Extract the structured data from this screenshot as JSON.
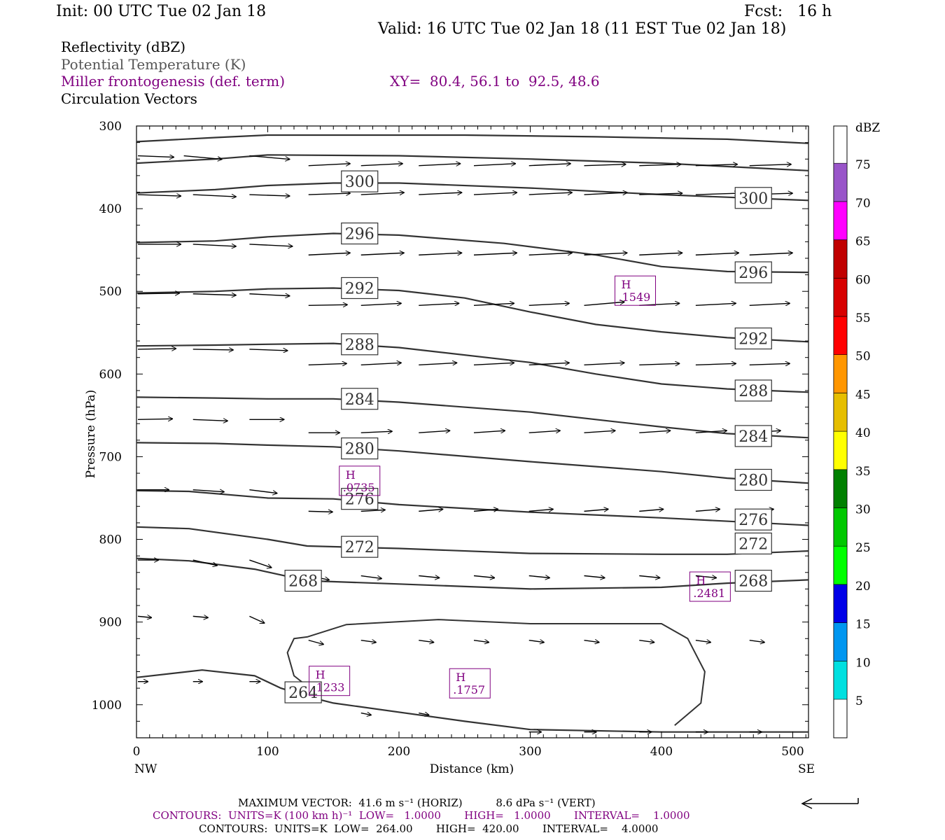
{
  "header": {
    "init": "Init: 00 UTC Tue 02 Jan 18",
    "fcst": "Fcst:   16 h",
    "valid": "Valid: 16 UTC Tue 02 Jan 18 (11 EST Tue 02 Jan 18)",
    "field1": "Reflectivity (dBZ)",
    "field2": "Potential Temperature (K)",
    "field3": "Miller frontogenesis (def. term)",
    "xy": "XY=  80.4, 56.1 to  92.5, 48.6",
    "field4": "Circulation Vectors"
  },
  "footer": {
    "max_vector": "MAXIMUM VECTOR:  41.6 m s⁻¹ (HORIZ)          8.6 dPa s⁻¹ (VERT)",
    "contours1": "CONTOURS:  UNITS=K (100 km h)⁻¹  LOW=   1.0000       HIGH=   1.0000       INTERVAL=    1.0000",
    "contours2": "CONTOURS:  UNITS=K  LOW=  264.00       HIGH=  420.00       INTERVAL=    4.0000"
  },
  "chart_data": {
    "type": "cross-section",
    "xlabel": "Distance (km)",
    "ylabel": "Pressure (hPa)",
    "xlim": [
      0,
      512
    ],
    "ylim": [
      300,
      1040
    ],
    "x_ticks": [
      0,
      100,
      200,
      300,
      400,
      500
    ],
    "y_ticks": [
      300,
      400,
      500,
      600,
      700,
      800,
      900,
      1000
    ],
    "x_end_labels": [
      "NW",
      "SE"
    ],
    "colorbar": {
      "title": "dBZ",
      "tick_labels": [
        "5",
        "10",
        "15",
        "20",
        "25",
        "30",
        "35",
        "40",
        "45",
        "50",
        "55",
        "60",
        "65",
        "70",
        "75"
      ],
      "colors": [
        "#00E0E0",
        "#0096F0",
        "#0000E8",
        "#00FF00",
        "#00C800",
        "#008000",
        "#FFFF00",
        "#E6BE00",
        "#FF9600",
        "#FF0000",
        "#D70000",
        "#C00000",
        "#FF00FF",
        "#9955C9",
        "#FFFFFF"
      ]
    },
    "theta_contours": [
      {
        "label": "",
        "points": [
          [
            0,
            319
          ],
          [
            60,
            314
          ],
          [
            100,
            311
          ],
          [
            250,
            311
          ],
          [
            350,
            313
          ],
          [
            450,
            316
          ],
          [
            512,
            321
          ]
        ]
      },
      {
        "label": "",
        "points": [
          [
            0,
            345
          ],
          [
            60,
            340
          ],
          [
            100,
            335
          ],
          [
            200,
            336
          ],
          [
            300,
            340
          ],
          [
            400,
            345
          ],
          [
            512,
            354
          ]
        ]
      },
      {
        "label": "300",
        "label_at": [
          [
            170,
            367
          ],
          [
            470,
            387
          ]
        ],
        "points": [
          [
            0,
            381
          ],
          [
            60,
            377
          ],
          [
            100,
            372
          ],
          [
            150,
            369
          ],
          [
            200,
            369
          ],
          [
            300,
            375
          ],
          [
            400,
            383
          ],
          [
            512,
            390
          ]
        ]
      },
      {
        "label": "296",
        "label_at": [
          [
            170,
            430
          ],
          [
            470,
            477
          ]
        ],
        "points": [
          [
            0,
            441
          ],
          [
            60,
            439
          ],
          [
            100,
            434
          ],
          [
            150,
            430
          ],
          [
            200,
            432
          ],
          [
            280,
            442
          ],
          [
            350,
            456
          ],
          [
            400,
            470
          ],
          [
            450,
            476
          ],
          [
            512,
            477
          ]
        ]
      },
      {
        "label": "292",
        "label_at": [
          [
            170,
            496
          ],
          [
            470,
            557
          ]
        ],
        "points": [
          [
            0,
            502
          ],
          [
            60,
            500
          ],
          [
            100,
            497
          ],
          [
            150,
            496
          ],
          [
            200,
            499
          ],
          [
            250,
            508
          ],
          [
            300,
            525
          ],
          [
            350,
            540
          ],
          [
            400,
            549
          ],
          [
            450,
            556
          ],
          [
            512,
            561
          ]
        ]
      },
      {
        "label": "288",
        "label_at": [
          [
            170,
            564
          ],
          [
            470,
            620
          ]
        ],
        "points": [
          [
            0,
            566
          ],
          [
            60,
            565
          ],
          [
            100,
            564
          ],
          [
            150,
            563
          ],
          [
            200,
            568
          ],
          [
            300,
            586
          ],
          [
            350,
            600
          ],
          [
            400,
            612
          ],
          [
            450,
            618
          ],
          [
            512,
            622
          ]
        ]
      },
      {
        "label": "284",
        "label_at": [
          [
            170,
            630
          ],
          [
            470,
            675
          ]
        ],
        "points": [
          [
            0,
            628
          ],
          [
            60,
            629
          ],
          [
            100,
            630
          ],
          [
            150,
            630
          ],
          [
            200,
            634
          ],
          [
            300,
            646
          ],
          [
            400,
            664
          ],
          [
            450,
            672
          ],
          [
            512,
            677
          ]
        ]
      },
      {
        "label": "280",
        "label_at": [
          [
            170,
            690
          ],
          [
            470,
            728
          ]
        ],
        "points": [
          [
            0,
            683
          ],
          [
            60,
            684
          ],
          [
            100,
            686
          ],
          [
            150,
            688
          ],
          [
            200,
            693
          ],
          [
            300,
            706
          ],
          [
            400,
            718
          ],
          [
            450,
            726
          ],
          [
            512,
            732
          ]
        ]
      },
      {
        "label": "276",
        "label_at": [
          [
            170,
            751
          ],
          [
            470,
            776
          ]
        ],
        "points": [
          [
            0,
            741
          ],
          [
            40,
            742
          ],
          [
            100,
            750
          ],
          [
            150,
            751
          ],
          [
            200,
            758
          ],
          [
            300,
            767
          ],
          [
            400,
            774
          ],
          [
            512,
            783
          ]
        ]
      },
      {
        "label": "272",
        "label_at": [
          [
            170,
            809
          ],
          [
            470,
            805
          ]
        ],
        "points": [
          [
            0,
            785
          ],
          [
            40,
            787
          ],
          [
            100,
            800
          ],
          [
            130,
            808
          ],
          [
            200,
            811
          ],
          [
            300,
            817
          ],
          [
            400,
            818
          ],
          [
            450,
            818
          ],
          [
            512,
            814
          ]
        ]
      },
      {
        "label": "268",
        "label_at": [
          [
            127,
            850
          ],
          [
            470,
            850
          ]
        ],
        "points": [
          [
            0,
            823
          ],
          [
            40,
            826
          ],
          [
            90,
            836
          ],
          [
            130,
            850
          ],
          [
            200,
            854
          ],
          [
            300,
            860
          ],
          [
            400,
            858
          ],
          [
            450,
            853
          ],
          [
            512,
            849
          ]
        ]
      },
      {
        "label": "264",
        "label_at": [
          [
            127,
            985
          ]
        ],
        "points": [
          [
            0,
            967
          ],
          [
            50,
            958
          ],
          [
            90,
            965
          ],
          [
            110,
            980
          ],
          [
            130,
            990
          ],
          [
            150,
            998
          ],
          [
            250,
            1020
          ],
          [
            300,
            1030
          ],
          [
            400,
            1033
          ],
          [
            512,
            1033
          ]
        ]
      }
    ],
    "frontogenesis_contour": [
      [
        410,
        1025
      ],
      [
        430,
        998
      ],
      [
        433,
        960
      ],
      [
        420,
        920
      ],
      [
        400,
        902
      ],
      [
        300,
        902
      ],
      [
        230,
        897
      ],
      [
        160,
        903
      ],
      [
        130,
        918
      ],
      [
        120,
        920
      ],
      [
        115,
        937
      ],
      [
        120,
        965
      ],
      [
        140,
        990
      ]
    ],
    "frontogenesis_maxima": [
      {
        "label": "H",
        "value": ".1549",
        "x": 380,
        "p": 500
      },
      {
        "label": "H",
        "value": ".0735",
        "x": 170,
        "p": 730
      },
      {
        "label": "H",
        "value": ".2481",
        "x": 437,
        "p": 858
      },
      {
        "label": "H",
        "value": ".1233",
        "x": 147,
        "p": 972
      },
      {
        "label": "H",
        "value": ".1757",
        "x": 254,
        "p": 975
      }
    ]
  }
}
